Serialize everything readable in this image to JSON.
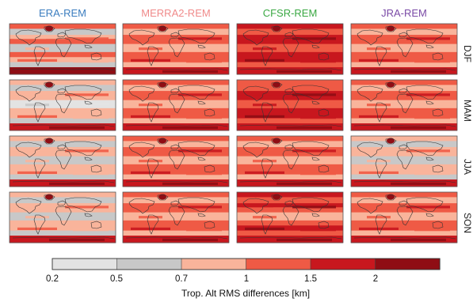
{
  "chart_data": {
    "type": "heatmap",
    "columns": [
      {
        "label": "ERA-REM",
        "color": "#3b7dbf"
      },
      {
        "label": "MERRA2-REM",
        "color": "#f08a8a"
      },
      {
        "label": "CFSR-REM",
        "color": "#3aa843"
      },
      {
        "label": "JRA-REM",
        "color": "#7a4aa6"
      }
    ],
    "rows": [
      "DJF",
      "MAM",
      "JJA",
      "SON"
    ],
    "colorbar": {
      "label": "Trop. Alt RMS differences [km]",
      "ticks": [
        "0.2",
        "0.5",
        "0.7",
        "1",
        "1.5",
        "2"
      ],
      "bins": [
        {
          "from": 0.2,
          "to": 0.5,
          "color": "#e3e3e3"
        },
        {
          "from": 0.5,
          "to": 0.7,
          "color": "#c8c8c8"
        },
        {
          "from": 0.7,
          "to": 1.0,
          "color": "#f9b49b"
        },
        {
          "from": 1.0,
          "to": 1.5,
          "color": "#ef5a45"
        },
        {
          "from": 1.5,
          "to": 2.0,
          "color": "#c8171e"
        },
        {
          "from": 2.0,
          "to": 2.5,
          "color": "#8f0d14"
        }
      ]
    },
    "panel_levels": {
      "ERA-REM": {
        "DJF": {
          "trop": 1,
          "mid": 2,
          "sub": 3,
          "polarS": 5,
          "polarN": 3
        },
        "MAM": {
          "trop": 0,
          "mid": 2,
          "sub": 2,
          "polarS": 4,
          "polarN": 2
        },
        "JJA": {
          "trop": 1,
          "mid": 2,
          "sub": 2,
          "polarS": 4,
          "polarN": 2
        },
        "SON": {
          "trop": 1,
          "mid": 2,
          "sub": 2,
          "polarS": 4,
          "polarN": 2
        }
      },
      "MERRA2-REM": {
        "DJF": {
          "trop": 2,
          "mid": 3,
          "sub": 3,
          "polarS": 4,
          "polarN": 3
        },
        "MAM": {
          "trop": 2,
          "mid": 3,
          "sub": 3,
          "polarS": 4,
          "polarN": 3
        },
        "JJA": {
          "trop": 2,
          "mid": 3,
          "sub": 3,
          "polarS": 4,
          "polarN": 3
        },
        "SON": {
          "trop": 2,
          "mid": 3,
          "sub": 3,
          "polarS": 4,
          "polarN": 3
        }
      },
      "CFSR-REM": {
        "DJF": {
          "trop": 3,
          "mid": 4,
          "sub": 4,
          "polarS": 4,
          "polarN": 4
        },
        "MAM": {
          "trop": 3,
          "mid": 4,
          "sub": 4,
          "polarS": 4,
          "polarN": 3
        },
        "JJA": {
          "trop": 2,
          "mid": 3,
          "sub": 3,
          "polarS": 4,
          "polarN": 3
        },
        "SON": {
          "trop": 2,
          "mid": 4,
          "sub": 3,
          "polarS": 4,
          "polarN": 4
        }
      },
      "JRA-REM": {
        "DJF": {
          "trop": 2,
          "mid": 3,
          "sub": 3,
          "polarS": 4,
          "polarN": 3
        },
        "MAM": {
          "trop": 2,
          "mid": 3,
          "sub": 3,
          "polarS": 4,
          "polarN": 3
        },
        "JJA": {
          "trop": 1,
          "mid": 2,
          "sub": 2,
          "polarS": 4,
          "polarN": 2
        },
        "SON": {
          "trop": 2,
          "mid": 3,
          "sub": 3,
          "polarS": 4,
          "polarN": 3
        }
      }
    }
  }
}
